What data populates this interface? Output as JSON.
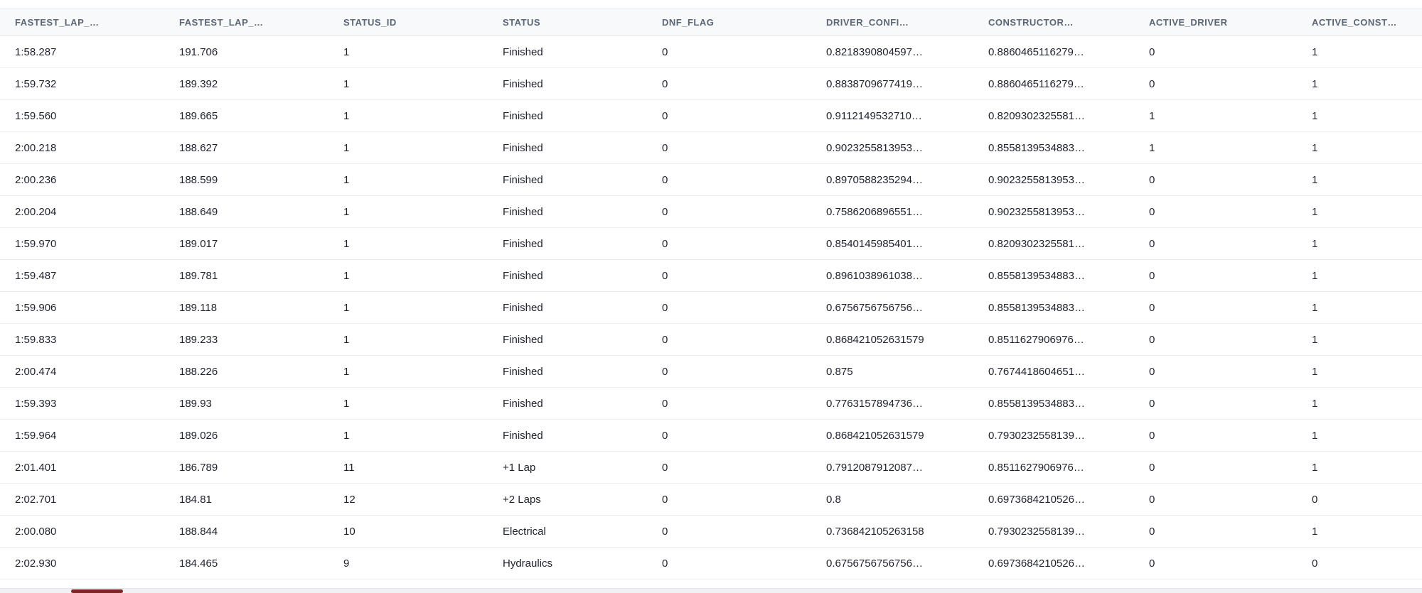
{
  "colors": {
    "header_bg": "#f8f9fa",
    "header_text": "#5b6676",
    "cell_text": "#1f222d",
    "row_border": "#ecedf0",
    "scrollbar_track": "#f1f1f3",
    "scrollbar_thumb": "#7f2424"
  },
  "table": {
    "columns": [
      {
        "id": "fastest-lap-1",
        "label": "FASTEST_LAP_…"
      },
      {
        "id": "fastest-lap-2",
        "label": "FASTEST_LAP_…"
      },
      {
        "id": "status-id",
        "label": "STATUS_ID"
      },
      {
        "id": "status",
        "label": "STATUS"
      },
      {
        "id": "dnf-flag",
        "label": "DNF_FLAG"
      },
      {
        "id": "driver-confi",
        "label": "DRIVER_CONFI…"
      },
      {
        "id": "constructor",
        "label": "CONSTRUCTOR…"
      },
      {
        "id": "active-driver",
        "label": "ACTIVE_DRIVER"
      },
      {
        "id": "active-const",
        "label": "ACTIVE_CONST…"
      }
    ],
    "rows": [
      [
        "1:58.287",
        "191.706",
        "1",
        "Finished",
        "0",
        "0.8218390804597…",
        "0.8860465116279…",
        "0",
        "1"
      ],
      [
        "1:59.732",
        "189.392",
        "1",
        "Finished",
        "0",
        "0.8838709677419…",
        "0.8860465116279…",
        "0",
        "1"
      ],
      [
        "1:59.560",
        "189.665",
        "1",
        "Finished",
        "0",
        "0.9112149532710…",
        "0.8209302325581…",
        "1",
        "1"
      ],
      [
        "2:00.218",
        "188.627",
        "1",
        "Finished",
        "0",
        "0.9023255813953…",
        "0.8558139534883…",
        "1",
        "1"
      ],
      [
        "2:00.236",
        "188.599",
        "1",
        "Finished",
        "0",
        "0.8970588235294…",
        "0.9023255813953…",
        "0",
        "1"
      ],
      [
        "2:00.204",
        "188.649",
        "1",
        "Finished",
        "0",
        "0.7586206896551…",
        "0.9023255813953…",
        "0",
        "1"
      ],
      [
        "1:59.970",
        "189.017",
        "1",
        "Finished",
        "0",
        "0.8540145985401…",
        "0.8209302325581…",
        "0",
        "1"
      ],
      [
        "1:59.487",
        "189.781",
        "1",
        "Finished",
        "0",
        "0.8961038961038…",
        "0.8558139534883…",
        "0",
        "1"
      ],
      [
        "1:59.906",
        "189.118",
        "1",
        "Finished",
        "0",
        "0.6756756756756…",
        "0.8558139534883…",
        "0",
        "1"
      ],
      [
        "1:59.833",
        "189.233",
        "1",
        "Finished",
        "0",
        "0.868421052631579",
        "0.8511627906976…",
        "0",
        "1"
      ],
      [
        "2:00.474",
        "188.226",
        "1",
        "Finished",
        "0",
        "0.875",
        "0.7674418604651…",
        "0",
        "1"
      ],
      [
        "1:59.393",
        "189.93",
        "1",
        "Finished",
        "0",
        "0.7763157894736…",
        "0.8558139534883…",
        "0",
        "1"
      ],
      [
        "1:59.964",
        "189.026",
        "1",
        "Finished",
        "0",
        "0.868421052631579",
        "0.7930232558139…",
        "0",
        "1"
      ],
      [
        "2:01.401",
        "186.789",
        "11",
        "+1 Lap",
        "0",
        "0.7912087912087…",
        "0.8511627906976…",
        "0",
        "1"
      ],
      [
        "2:02.701",
        "184.81",
        "12",
        "+2 Laps",
        "0",
        "0.8",
        "0.6973684210526…",
        "0",
        "0"
      ],
      [
        "2:00.080",
        "188.844",
        "10",
        "Electrical",
        "0",
        "0.736842105263158",
        "0.7930232558139…",
        "0",
        "1"
      ],
      [
        "2:02.930",
        "184.465",
        "9",
        "Hydraulics",
        "0",
        "0.6756756756756…",
        "0.6973684210526…",
        "0",
        "0"
      ]
    ]
  }
}
